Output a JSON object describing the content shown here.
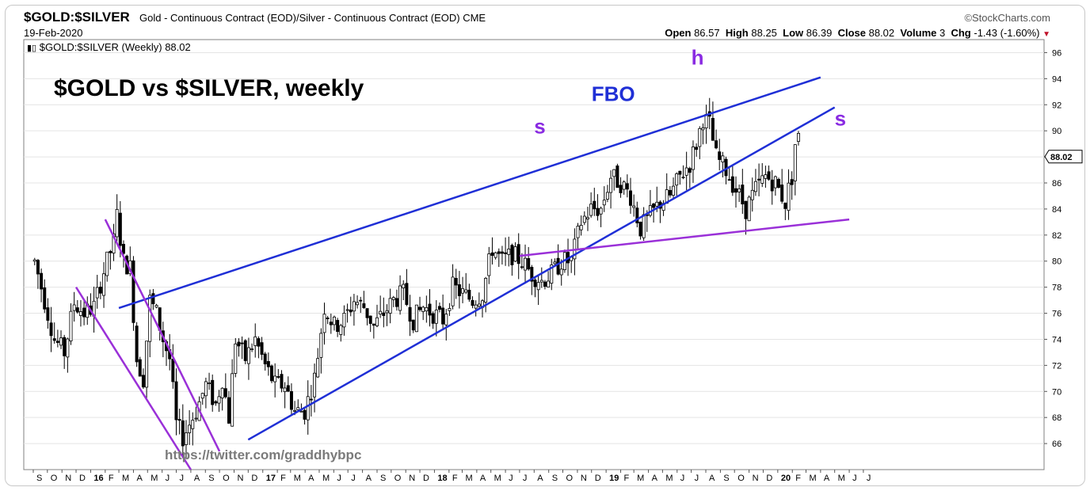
{
  "header": {
    "symbol": "$GOLD:$SILVER",
    "description": "Gold - Continuous Contract (EOD)/Silver - Continuous Contract (EOD)",
    "exchange": "CME",
    "brand": "©StockCharts.com",
    "date": "19-Feb-2020",
    "ohlc": {
      "open_label": "Open",
      "open": "86.57",
      "high_label": "High",
      "high": "88.25",
      "low_label": "Low",
      "low": "86.39",
      "close_label": "Close",
      "close": "88.02",
      "volume_label": "Volume",
      "volume": "3",
      "chg_label": "Chg",
      "chg": "-1.43 (-1.60%)"
    }
  },
  "legend": {
    "icon": "candlestick-icon",
    "text": "$GOLD:$SILVER (Weekly) 88.02"
  },
  "colors": {
    "trendline": "#1f2fd6",
    "neckline": "#9a30d8",
    "annotation_label": "#8a2be2",
    "text": "#000000"
  },
  "chart_data": {
    "type": "candlestick",
    "title": "$GOLD vs $SILVER, weekly",
    "current_price_label": "88.02",
    "watermark": "https://twitter.com/graddhybpc",
    "y_axis": {
      "position": "right",
      "ticks": [
        66,
        68,
        70,
        72,
        74,
        76,
        78,
        80,
        82,
        84,
        86,
        88,
        90,
        92,
        94,
        96
      ],
      "range": [
        64,
        97
      ]
    },
    "x_axis": {
      "start": "2015-09",
      "end": "2021-06",
      "tick_labels": [
        "S",
        "O",
        "N",
        "D",
        "16",
        "F",
        "M",
        "A",
        "M",
        "J",
        "J",
        "A",
        "S",
        "O",
        "N",
        "D",
        "17",
        "F",
        "M",
        "A",
        "M",
        "J",
        "J",
        "A",
        "S",
        "O",
        "N",
        "D",
        "18",
        "F",
        "M",
        "A",
        "M",
        "J",
        "J",
        "A",
        "S",
        "O",
        "N",
        "D",
        "19",
        "F",
        "M",
        "A",
        "M",
        "J",
        "J",
        "A",
        "S",
        "O",
        "N",
        "D",
        "20",
        "F",
        "M",
        "A",
        "M",
        "J",
        "J"
      ],
      "bold_labels": [
        "16",
        "17",
        "18",
        "19",
        "20"
      ]
    },
    "annotations": [
      {
        "text": "FBO",
        "color": "#1f2fd6",
        "date": "2018-12",
        "value": 92.3
      },
      {
        "text": "s",
        "color": "#8a2be2",
        "date": "2018-08",
        "value": 89.8
      },
      {
        "text": "h",
        "color": "#8a2be2",
        "date": "2019-07",
        "value": 95.1
      },
      {
        "text": "s",
        "color": "#8a2be2",
        "date": "2020-05",
        "value": 90.4
      }
    ],
    "trendlines": [
      {
        "name": "upper-channel",
        "color": "#1f2fd6",
        "from": {
          "date": "2016-03",
          "value": 76.4
        },
        "to": {
          "date": "2020-04",
          "value": 94.1
        }
      },
      {
        "name": "lower-channel",
        "color": "#1f2fd6",
        "from": {
          "date": "2016-12",
          "value": 66.3
        },
        "to": {
          "date": "2020-05",
          "value": 91.8
        }
      },
      {
        "name": "neckline",
        "color": "#9a30d8",
        "from": {
          "date": "2018-07",
          "value": 80.4
        },
        "to": {
          "date": "2020-06",
          "value": 83.2
        }
      },
      {
        "name": "downtrend-outer",
        "color": "#9a30d8",
        "from": {
          "date": "2015-12",
          "value": 78.0
        },
        "to": {
          "date": "2016-08",
          "value": 64.0
        }
      },
      {
        "name": "downtrend-inner",
        "color": "#9a30d8",
        "from": {
          "date": "2016-02",
          "value": 83.2
        },
        "to": {
          "date": "2016-10",
          "value": 65.4
        }
      }
    ],
    "anchors": [
      [
        "2015-09-04",
        80.0
      ],
      [
        "2015-09-25",
        77.0
      ],
      [
        "2015-10-16",
        74.0
      ],
      [
        "2015-11-06",
        73.0
      ],
      [
        "2015-11-27",
        76.8
      ],
      [
        "2015-12-18",
        76.0
      ],
      [
        "2016-01-08",
        76.5
      ],
      [
        "2016-01-29",
        79.2
      ],
      [
        "2016-02-19",
        81.5
      ],
      [
        "2016-02-26",
        83.5
      ],
      [
        "2016-03-11",
        80.0
      ],
      [
        "2016-03-25",
        79.5
      ],
      [
        "2016-04-08",
        72.5
      ],
      [
        "2016-04-22",
        71.0
      ],
      [
        "2016-05-06",
        77.0
      ],
      [
        "2016-05-20",
        76.0
      ],
      [
        "2016-06-03",
        74.0
      ],
      [
        "2016-06-17",
        72.5
      ],
      [
        "2016-07-01",
        67.5
      ],
      [
        "2016-07-15",
        66.5
      ],
      [
        "2016-07-29",
        67.5
      ],
      [
        "2016-08-12",
        68.5
      ],
      [
        "2016-09-02",
        70.5
      ],
      [
        "2016-09-23",
        69.0
      ],
      [
        "2016-10-07",
        71.0
      ],
      [
        "2016-10-21",
        68.0
      ],
      [
        "2016-11-04",
        74.0
      ],
      [
        "2016-11-25",
        72.5
      ],
      [
        "2016-12-16",
        74.0
      ],
      [
        "2017-01-06",
        72.0
      ],
      [
        "2017-01-27",
        70.5
      ],
      [
        "2017-02-17",
        70.5
      ],
      [
        "2017-03-10",
        68.5
      ],
      [
        "2017-03-31",
        68.5
      ],
      [
        "2017-04-21",
        71.0
      ],
      [
        "2017-05-12",
        76.5
      ],
      [
        "2017-06-02",
        75.0
      ],
      [
        "2017-06-23",
        75.5
      ],
      [
        "2017-07-14",
        77.0
      ],
      [
        "2017-08-04",
        76.5
      ],
      [
        "2017-08-25",
        75.0
      ],
      [
        "2017-09-15",
        76.0
      ],
      [
        "2017-10-06",
        77.0
      ],
      [
        "2017-10-27",
        77.5
      ],
      [
        "2017-11-17",
        75.5
      ],
      [
        "2017-12-08",
        76.5
      ],
      [
        "2017-12-29",
        76.0
      ],
      [
        "2018-01-19",
        75.5
      ],
      [
        "2018-02-09",
        78.0
      ],
      [
        "2018-03-02",
        77.5
      ],
      [
        "2018-03-23",
        77.0
      ],
      [
        "2018-04-13",
        77.5
      ],
      [
        "2018-05-04",
        81.0
      ],
      [
        "2018-05-25",
        80.0
      ],
      [
        "2018-06-15",
        80.5
      ],
      [
        "2018-07-06",
        80.0
      ],
      [
        "2018-07-27",
        79.0
      ],
      [
        "2018-08-17",
        78.5
      ],
      [
        "2018-09-07",
        79.0
      ],
      [
        "2018-09-28",
        80.0
      ],
      [
        "2018-10-19",
        80.0
      ],
      [
        "2018-11-09",
        83.0
      ],
      [
        "2018-11-30",
        84.0
      ],
      [
        "2018-12-21",
        84.0
      ],
      [
        "2019-01-11",
        86.5
      ],
      [
        "2019-02-01",
        86.0
      ],
      [
        "2019-02-22",
        85.0
      ],
      [
        "2019-03-15",
        82.5
      ],
      [
        "2019-04-05",
        83.5
      ],
      [
        "2019-04-26",
        84.5
      ],
      [
        "2019-05-17",
        85.0
      ],
      [
        "2019-06-07",
        86.5
      ],
      [
        "2019-06-28",
        87.5
      ],
      [
        "2019-07-12",
        89.0
      ],
      [
        "2019-07-26",
        91.0
      ],
      [
        "2019-08-09",
        90.5
      ],
      [
        "2019-08-23",
        88.0
      ],
      [
        "2019-09-13",
        87.0
      ],
      [
        "2019-10-04",
        85.5
      ],
      [
        "2019-10-25",
        84.0
      ],
      [
        "2019-11-15",
        85.5
      ],
      [
        "2019-12-06",
        86.5
      ],
      [
        "2019-12-27",
        86.0
      ],
      [
        "2020-01-17",
        84.5
      ],
      [
        "2020-01-31",
        86.5
      ],
      [
        "2020-02-07",
        89.0
      ],
      [
        "2020-02-14",
        89.4
      ],
      [
        "2020-02-19",
        88.02
      ]
    ]
  }
}
